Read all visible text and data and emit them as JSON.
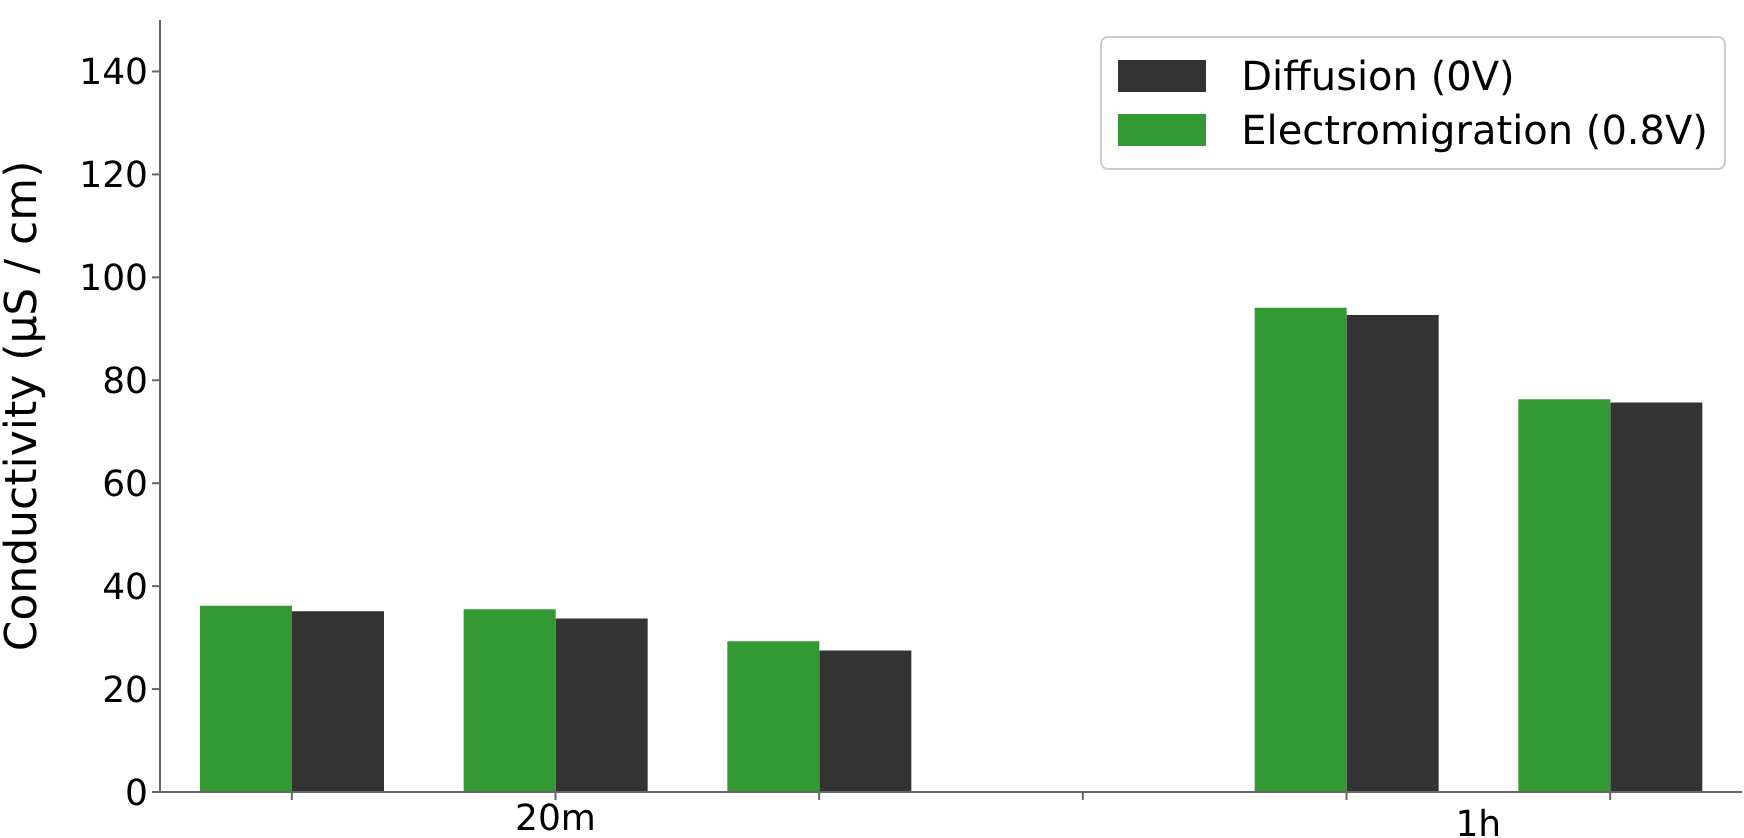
{
  "chart_data": {
    "type": "bar",
    "ylabel": "Conductivity (µS / cm)",
    "categories": [
      null,
      "20m",
      null,
      null,
      null,
      null
    ],
    "series": [
      {
        "name": "Diffusion (0V)",
        "color": "#333333",
        "values": [
          35.1,
          33.7,
          27.5,
          null,
          92.7,
          75.7
        ]
      },
      {
        "name": "Electromigration (0.8V)",
        "color": "#339933",
        "values": [
          36.2,
          35.5,
          29.3,
          null,
          94.1,
          76.3
        ]
      }
    ],
    "ylim": [
      0,
      150
    ],
    "yticks": [
      0,
      20,
      40,
      60,
      80,
      100,
      120,
      140
    ],
    "annotations": [
      "1h"
    ],
    "legend": "top right"
  }
}
